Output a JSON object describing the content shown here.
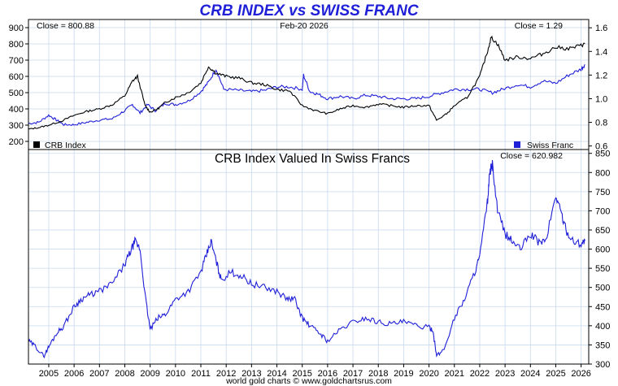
{
  "title": "CRB INDEX vs SWISS FRANC",
  "footer": "world gold charts © www.goldchartsrus.com",
  "colors": {
    "title": "#1f1fd8",
    "crb_line": "#000000",
    "chf_line": "#1f1fd8",
    "lower_line": "#1f1fd8",
    "grid": "#c8d9ee"
  },
  "chart_data": [
    {
      "type": "line",
      "name": "upper-panel",
      "close_left": "Close = 800.88",
      "date": "Feb-20  2026",
      "close_right": "Close = 1.29",
      "legend": [
        {
          "label": "CRB Index",
          "color": "#000000",
          "position": "bottom-left"
        },
        {
          "label": "Swiss Franc",
          "color": "#1f1fd8",
          "position": "bottom-right"
        }
      ],
      "x_range": [
        2004.2,
        2026.3
      ],
      "left_axis": {
        "ticks": [
          "200",
          "300",
          "400",
          "500",
          "600",
          "700",
          "800",
          "900"
        ],
        "ylim": [
          150,
          950
        ]
      },
      "right_axis": {
        "ticks": [
          "0.6",
          "0.8",
          "1.0",
          "1.2",
          "1.4",
          "1.6"
        ],
        "ylim": [
          0.57,
          1.67
        ]
      },
      "series": [
        {
          "name": "CRB Index",
          "axis": "left",
          "x": [
            2004.2,
            2004.6,
            2005.0,
            2005.5,
            2006.0,
            2006.5,
            2007.0,
            2007.5,
            2008.0,
            2008.3,
            2008.5,
            2008.8,
            2009.0,
            2009.3,
            2009.6,
            2010.0,
            2010.5,
            2011.0,
            2011.3,
            2011.6,
            2012.0,
            2012.5,
            2013.0,
            2013.5,
            2014.0,
            2014.5,
            2015.0,
            2015.5,
            2016.0,
            2016.5,
            2017.0,
            2017.5,
            2018.0,
            2018.5,
            2019.0,
            2019.5,
            2020.0,
            2020.3,
            2020.7,
            2021.0,
            2021.5,
            2022.0,
            2022.3,
            2022.45,
            2022.7,
            2023.0,
            2023.5,
            2024.0,
            2024.5,
            2025.0,
            2025.5,
            2026.0,
            2026.15
          ],
          "values": [
            275,
            285,
            300,
            325,
            360,
            385,
            400,
            425,
            480,
            570,
            600,
            420,
            380,
            400,
            440,
            470,
            500,
            560,
            660,
            620,
            600,
            590,
            560,
            550,
            520,
            510,
            420,
            390,
            370,
            400,
            420,
            410,
            430,
            420,
            410,
            420,
            420,
            330,
            370,
            420,
            470,
            600,
            750,
            840,
            800,
            700,
            720,
            710,
            740,
            780,
            770,
            790,
            800
          ]
        },
        {
          "name": "Swiss Franc",
          "axis": "right",
          "x": [
            2004.2,
            2004.6,
            2005.0,
            2005.3,
            2005.6,
            2006.0,
            2006.5,
            2007.0,
            2007.5,
            2008.0,
            2008.3,
            2008.6,
            2008.9,
            2009.2,
            2009.6,
            2010.0,
            2010.5,
            2011.0,
            2011.3,
            2011.6,
            2011.9,
            2012.5,
            2013.0,
            2013.5,
            2014.0,
            2014.5,
            2015.0,
            2015.05,
            2015.3,
            2015.6,
            2016.0,
            2016.5,
            2017.0,
            2017.5,
            2018.0,
            2018.5,
            2019.0,
            2019.5,
            2020.0,
            2020.5,
            2021.0,
            2021.5,
            2022.0,
            2022.5,
            2022.9,
            2023.5,
            2024.0,
            2024.5,
            2025.0,
            2025.5,
            2026.0,
            2026.15
          ],
          "values": [
            0.79,
            0.8,
            0.86,
            0.82,
            0.78,
            0.78,
            0.8,
            0.82,
            0.83,
            0.9,
            0.95,
            0.88,
            0.95,
            0.9,
            0.96,
            0.95,
            0.98,
            1.06,
            1.14,
            1.25,
            1.08,
            1.07,
            1.06,
            1.07,
            1.1,
            1.1,
            1.08,
            1.2,
            1.06,
            1.04,
            1.0,
            1.02,
            1.0,
            1.03,
            1.02,
            1.0,
            1.0,
            1.0,
            1.02,
            1.05,
            1.08,
            1.08,
            1.08,
            1.05,
            1.08,
            1.12,
            1.1,
            1.15,
            1.13,
            1.2,
            1.25,
            1.29
          ]
        }
      ]
    },
    {
      "type": "line",
      "name": "lower-panel",
      "title": "CRB Index Valued In Swiss Francs",
      "close": "Close = 620.982",
      "x_range": [
        2004.2,
        2026.3
      ],
      "right_axis": {
        "ticks": [
          "300",
          "350",
          "400",
          "450",
          "500",
          "550",
          "600",
          "650",
          "700",
          "750",
          "800",
          "850"
        ],
        "ylim": [
          300,
          860
        ]
      },
      "x_ticks": [
        "2005",
        "2006",
        "2007",
        "2008",
        "2009",
        "2010",
        "2011",
        "2012",
        "2013",
        "2014",
        "2015",
        "2016",
        "2017",
        "2018",
        "2019",
        "2020",
        "2021",
        "2022",
        "2023",
        "2024",
        "2025",
        "2026"
      ],
      "series": [
        {
          "name": "CRB Index Valued In Swiss Francs",
          "x": [
            2004.2,
            2004.5,
            2004.8,
            2005.0,
            2005.3,
            2005.6,
            2006.0,
            2006.3,
            2006.6,
            2007.0,
            2007.5,
            2008.0,
            2008.2,
            2008.4,
            2008.6,
            2008.8,
            2009.0,
            2009.3,
            2009.6,
            2010.0,
            2010.5,
            2011.0,
            2011.2,
            2011.4,
            2011.6,
            2011.8,
            2012.2,
            2012.6,
            2013.0,
            2013.5,
            2014.0,
            2014.4,
            2014.7,
            2015.0,
            2015.3,
            2015.7,
            2016.0,
            2016.5,
            2017.0,
            2017.5,
            2018.0,
            2018.5,
            2019.0,
            2019.5,
            2020.0,
            2020.15,
            2020.3,
            2020.6,
            2021.0,
            2021.4,
            2021.8,
            2022.0,
            2022.3,
            2022.4,
            2022.5,
            2022.7,
            2023.0,
            2023.3,
            2023.6,
            2024.0,
            2024.3,
            2024.6,
            2025.0,
            2025.2,
            2025.4,
            2025.7,
            2026.0,
            2026.15
          ],
          "values": [
            360,
            345,
            320,
            345,
            380,
            400,
            450,
            470,
            480,
            490,
            510,
            560,
            590,
            620,
            600,
            480,
            390,
            420,
            430,
            470,
            490,
            540,
            580,
            620,
            570,
            520,
            540,
            530,
            510,
            500,
            490,
            470,
            470,
            420,
            400,
            380,
            360,
            390,
            410,
            420,
            410,
            405,
            410,
            400,
            395,
            390,
            320,
            340,
            420,
            470,
            540,
            580,
            720,
            800,
            820,
            700,
            640,
            620,
            600,
            640,
            620,
            620,
            740,
            700,
            650,
            620,
            615,
            621
          ]
        }
      ]
    }
  ]
}
